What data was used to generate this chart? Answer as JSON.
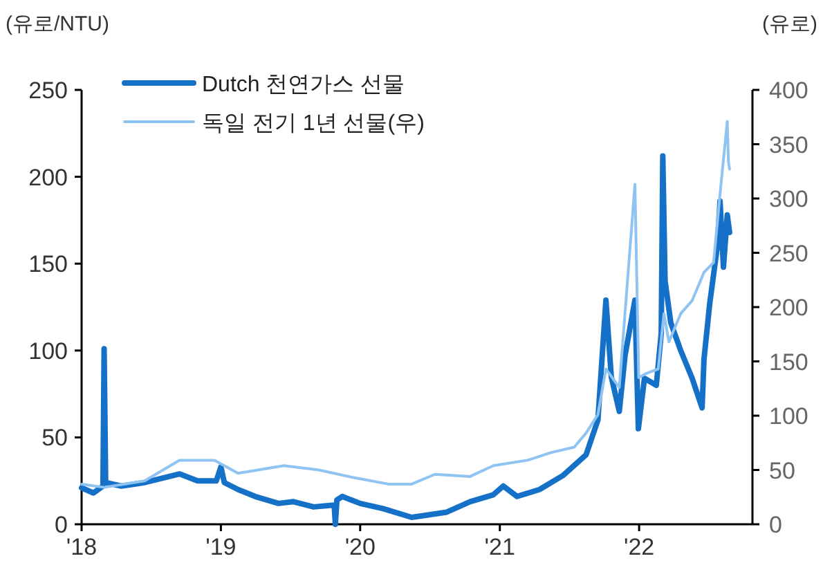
{
  "chart_data": {
    "type": "line",
    "ylabel": "(유로/NTU)",
    "y2label": "(유로)",
    "xlim": [
      "2018-01-01",
      "2022-10-25"
    ],
    "xticks": [
      {
        "value": "2018-01-01",
        "label": "'18"
      },
      {
        "value": "2019-01-01",
        "label": "'19"
      },
      {
        "value": "2020-01-01",
        "label": "'20"
      },
      {
        "value": "2021-01-01",
        "label": "'21"
      },
      {
        "value": "2022-01-01",
        "label": "'22"
      }
    ],
    "ylim": [
      0,
      250
    ],
    "yticks": [
      0,
      50,
      100,
      150,
      200,
      250
    ],
    "y2lim": [
      0,
      400
    ],
    "y2ticks": [
      0,
      50,
      100,
      150,
      200,
      250,
      300,
      350,
      400
    ],
    "legend": "top left",
    "grid": false,
    "marker": "none",
    "line_style": "solid",
    "series": [
      {
        "name": "Dutch 천연가스 선물",
        "color": "#1570c8",
        "axis": "y",
        "x": [
          "2018-01-01",
          "2018-02-01",
          "2018-02-26",
          "2018-03-01",
          "2018-03-05",
          "2018-04-15",
          "2018-06-15",
          "2018-09-15",
          "2018-11-01",
          "2018-12-20",
          "2019-01-01",
          "2019-01-10",
          "2019-02-15",
          "2019-04-01",
          "2019-06-01",
          "2019-07-10",
          "2019-09-01",
          "2019-10-25",
          "2019-10-28",
          "2019-11-01",
          "2019-11-15",
          "2020-01-01",
          "2020-03-01",
          "2020-05-15",
          "2020-06-15",
          "2020-08-15",
          "2020-10-15",
          "2020-12-15",
          "2021-01-10",
          "2021-02-15",
          "2021-04-15",
          "2021-06-15",
          "2021-08-15",
          "2021-09-15",
          "2021-10-06",
          "2021-10-20",
          "2021-11-10",
          "2021-11-25",
          "2021-12-21",
          "2021-12-30",
          "2022-01-15",
          "2022-02-15",
          "2022-02-28",
          "2022-03-04",
          "2022-03-10",
          "2022-03-25",
          "2022-04-20",
          "2022-05-20",
          "2022-06-15",
          "2022-06-20",
          "2022-07-05",
          "2022-07-25",
          "2022-08-01",
          "2022-08-10",
          "2022-08-20",
          "2022-08-26"
        ],
        "values": [
          21,
          18,
          22,
          101,
          24,
          22,
          24,
          29,
          25,
          25,
          33,
          24,
          20,
          16,
          12,
          13,
          10,
          11,
          0,
          14,
          16,
          12,
          9,
          4,
          5,
          7,
          13,
          17,
          22,
          16,
          20,
          28,
          40,
          60,
          129,
          85,
          65,
          97,
          129,
          55,
          84,
          80,
          110,
          212,
          140,
          116,
          100,
          84,
          67,
          95,
          127,
          160,
          186,
          148,
          178,
          168
        ]
      },
      {
        "name": "독일 전기 1년 선물(우)",
        "color": "#8ec3f2",
        "axis": "y2",
        "x": [
          "2018-01-01",
          "2018-03-01",
          "2018-06-15",
          "2018-09-15",
          "2018-12-15",
          "2019-02-15",
          "2019-06-15",
          "2019-09-15",
          "2019-12-15",
          "2020-03-15",
          "2020-05-15",
          "2020-07-15",
          "2020-10-15",
          "2020-12-15",
          "2021-03-15",
          "2021-05-15",
          "2021-07-15",
          "2021-08-15",
          "2021-09-15",
          "2021-10-06",
          "2021-11-10",
          "2021-12-21",
          "2021-12-31",
          "2022-01-20",
          "2022-02-20",
          "2022-03-07",
          "2022-03-20",
          "2022-04-20",
          "2022-05-20",
          "2022-06-20",
          "2022-07-15",
          "2022-08-01",
          "2022-08-20",
          "2022-08-23",
          "2022-08-26"
        ],
        "values": [
          37,
          34,
          40,
          59,
          59,
          47,
          54,
          50,
          43,
          37,
          37,
          46,
          44,
          54,
          59,
          66,
          71,
          84,
          101,
          143,
          126,
          313,
          135,
          139,
          143,
          194,
          168,
          194,
          206,
          232,
          241,
          304,
          371,
          334,
          327
        ]
      }
    ]
  }
}
